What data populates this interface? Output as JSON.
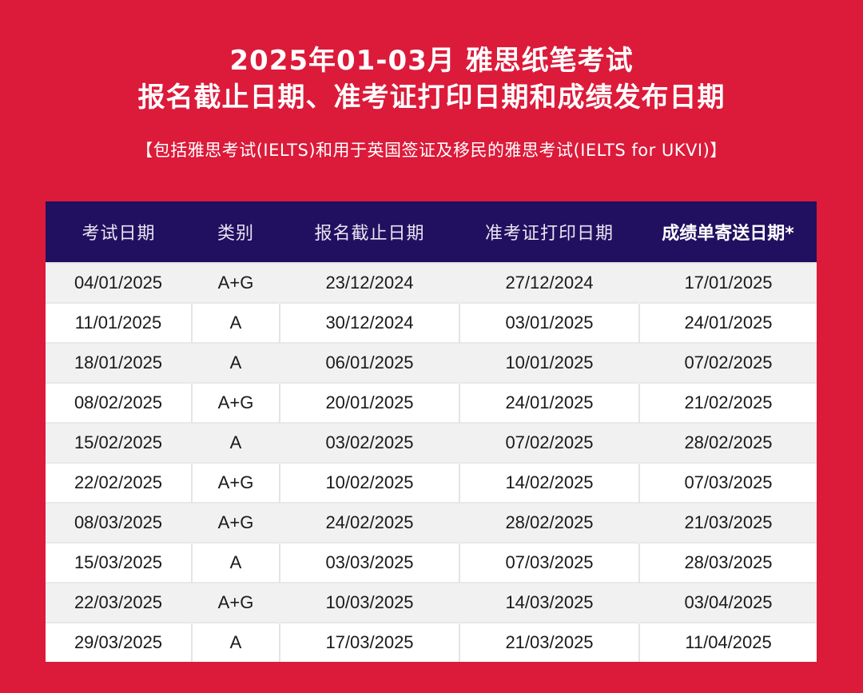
{
  "title_line1": "2025年01-03月 雅思纸笔考试",
  "title_line2": "报名截止日期、准考证打印日期和成绩发布日期",
  "subtitle": "【包括雅思考试(IELTS)和用于英国签证及移民的雅思考试(IELTS for UKVI)】",
  "colors": {
    "background": "#dc1a3a",
    "header": "#211060"
  },
  "table": {
    "headers": [
      "考试日期",
      "类别",
      "报名截止日期",
      "准考证打印日期",
      "成绩单寄送日期*"
    ],
    "rows": [
      [
        "04/01/2025",
        "A+G",
        "23/12/2024",
        "27/12/2024",
        "17/01/2025"
      ],
      [
        "11/01/2025",
        "A",
        "30/12/2024",
        "03/01/2025",
        "24/01/2025"
      ],
      [
        "18/01/2025",
        "A",
        "06/01/2025",
        "10/01/2025",
        "07/02/2025"
      ],
      [
        "08/02/2025",
        "A+G",
        "20/01/2025",
        "24/01/2025",
        "21/02/2025"
      ],
      [
        "15/02/2025",
        "A",
        "03/02/2025",
        "07/02/2025",
        "28/02/2025"
      ],
      [
        "22/02/2025",
        "A+G",
        "10/02/2025",
        "14/02/2025",
        "07/03/2025"
      ],
      [
        "08/03/2025",
        "A+G",
        "24/02/2025",
        "28/02/2025",
        "21/03/2025"
      ],
      [
        "15/03/2025",
        "A",
        "03/03/2025",
        "07/03/2025",
        "28/03/2025"
      ],
      [
        "22/03/2025",
        "A+G",
        "10/03/2025",
        "14/03/2025",
        "03/04/2025"
      ],
      [
        "29/03/2025",
        "A",
        "17/03/2025",
        "21/03/2025",
        "11/04/2025"
      ]
    ]
  }
}
